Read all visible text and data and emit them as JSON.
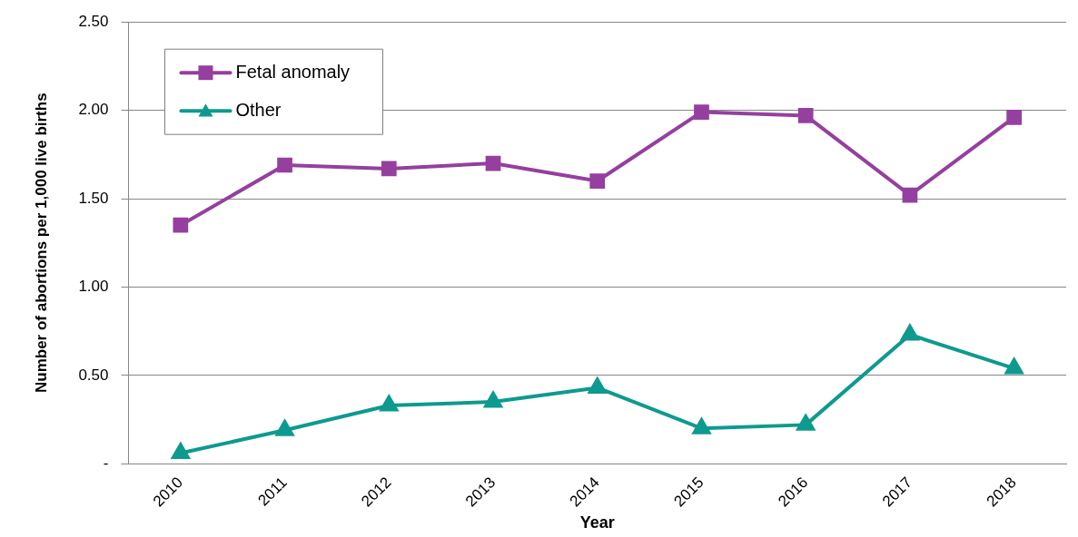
{
  "chart_data": {
    "type": "line",
    "xlabel": "Year",
    "ylabel": "Number of abortions per 1,000 live births",
    "categories": [
      "2010",
      "2011",
      "2012",
      "2013",
      "2014",
      "2015",
      "2016",
      "2017",
      "2018"
    ],
    "series": [
      {
        "name": "Fetal anomaly",
        "color": "#953f9f",
        "marker": "square",
        "values": [
          1.35,
          1.69,
          1.67,
          1.7,
          1.6,
          1.99,
          1.97,
          1.52,
          1.96
        ]
      },
      {
        "name": "Other",
        "color": "#0e9a8e",
        "marker": "triangle",
        "values": [
          0.06,
          0.19,
          0.33,
          0.35,
          0.43,
          0.2,
          0.22,
          0.73,
          0.54
        ]
      }
    ],
    "ylim": [
      0,
      2.5
    ],
    "yticks": [
      {
        "value": 0,
        "label": "-"
      },
      {
        "value": 0.5,
        "label": "0.50"
      },
      {
        "value": 1,
        "label": "1.00"
      },
      {
        "value": 1.5,
        "label": "1.50"
      },
      {
        "value": 2,
        "label": "2.00"
      },
      {
        "value": 2.5,
        "label": "2.50"
      }
    ],
    "grid": "y",
    "legend": "top left",
    "line_style": "solid"
  }
}
